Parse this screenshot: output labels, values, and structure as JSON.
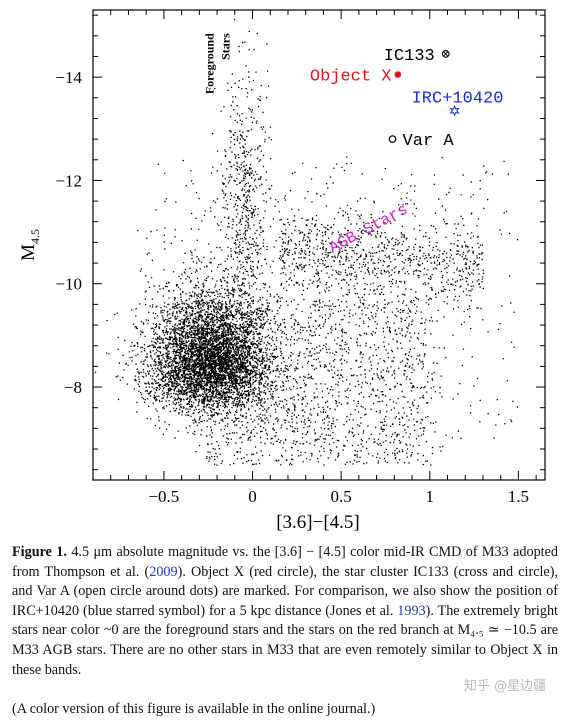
{
  "chart_data": {
    "type": "scatter",
    "title": "",
    "xlabel": "[3.6]−[4.5]",
    "ylabel_main": "M",
    "ylabel_sub": "4.5",
    "xlim": [
      -0.9,
      1.65
    ],
    "ylim": [
      -6.2,
      -15.3
    ],
    "y_inverted": true,
    "grid": false,
    "x_ticks": [
      -0.5,
      0,
      0.5,
      1,
      1.5
    ],
    "x_tick_labels": [
      "−0.5",
      "0",
      "0.5",
      "1",
      "1.5"
    ],
    "y_ticks": [
      -14,
      -12,
      -10,
      -8
    ],
    "y_tick_labels": [
      "−14",
      "−12",
      "−10",
      "−8"
    ],
    "density_regions": [
      {
        "name": "main cluster",
        "x_center": -0.25,
        "y_center": -8.0,
        "x_spread": 0.17,
        "y_spread": 0.85
      },
      {
        "name": "foreground stars",
        "x_center": -0.05,
        "y_center": -11.5,
        "x_spread": 0.07,
        "y_spread": 1.3
      },
      {
        "name": "AGB branch",
        "x_from": 0.15,
        "x_to": 1.3,
        "y_center": -10.3,
        "y_spread": 0.45
      }
    ],
    "marked_objects": [
      {
        "label": "IC133",
        "x": 1.09,
        "y": -14.45,
        "marker": "cross-circle",
        "color": "#000000"
      },
      {
        "label": "Object X",
        "x": 0.82,
        "y": -14.05,
        "marker": "filled-circle",
        "color": "#e0161b"
      },
      {
        "label": "IRC+10420",
        "x": 1.14,
        "y": -13.35,
        "marker": "star",
        "color": "#1a2fd1"
      },
      {
        "label": "Var A",
        "x": 0.79,
        "y": -12.8,
        "marker": "open-circle",
        "color": "#000000"
      }
    ],
    "annotations": [
      {
        "text": "Foreground Stars",
        "x": -0.22,
        "y": -14.0,
        "rotation": -90,
        "color": "#000000"
      },
      {
        "text": "AGB Stars",
        "x": 0.45,
        "y": -10.6,
        "rotation": -28,
        "color": "#d01fc4"
      }
    ]
  },
  "caption": {
    "label": "Figure 1.",
    "part1": " 4.5 μm absolute magnitude vs. the [3.6] − [4.5] color mid-IR CMD of M33 adopted from Thompson et al. (",
    "ref1": "2009",
    "part2": "). Object X (red circle), the star cluster IC133 (cross and circle), and Var A (open circle around dots) are marked. For comparison, we also show the position of IRC+10420 (blue starred symbol) for a 5 kpc distance (Jones et al. ",
    "ref2": "1993",
    "part3": "). The extremely bright stars near color ~0 are the foreground stars and the stars on the red branch at M₄.₅ ≃ −10.5 are M33 AGB stars. There are no other stars in M33 that are even remotely similar to Object X in these bands."
  },
  "note": "(A color version of this figure is available in the online journal.)",
  "watermark": "知乎 @星边疆"
}
